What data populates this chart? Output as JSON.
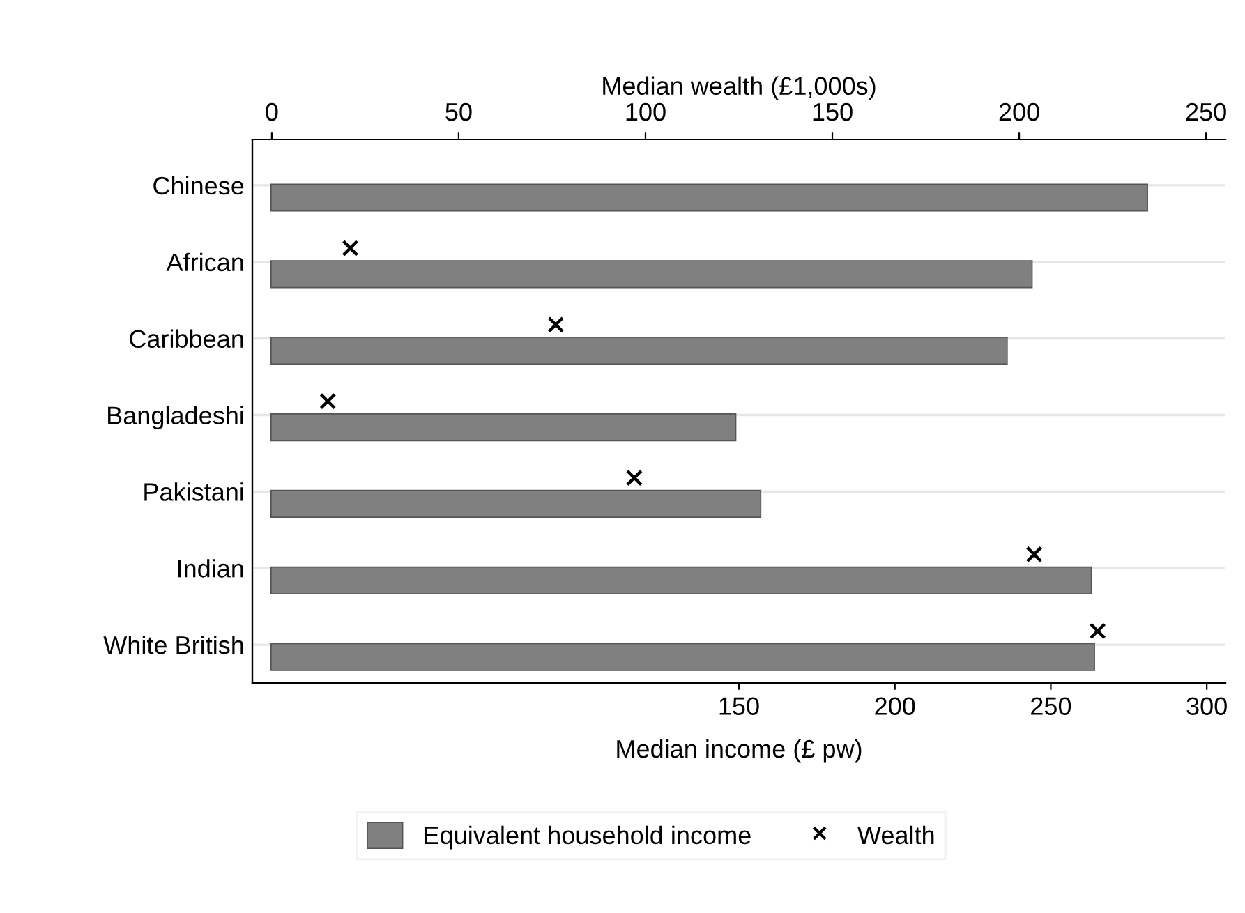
{
  "chart_data": {
    "type": "bar",
    "orientation": "horizontal",
    "categories": [
      "Chinese",
      "African",
      "Caribbean",
      "Bangladeshi",
      "Pakistani",
      "Indian",
      "White British"
    ],
    "series": [
      {
        "name": "Equivalent household income",
        "color": "#808080",
        "values": [
          281,
          244,
          236,
          149,
          157,
          263,
          264
        ]
      },
      {
        "name": "Wealth",
        "type": "scatter",
        "axis": "x2",
        "marker": "cross",
        "color": "#000000",
        "values": [
          null,
          21,
          76,
          15,
          97,
          204,
          221
        ]
      }
    ],
    "xlabel": "Median income (£ pw)",
    "x2label": "Median wealth (£1,000s)",
    "xlim": [
      -6,
      306
    ],
    "xticks": [
      150,
      200,
      250,
      300
    ],
    "x2lim": [
      -5.2,
      255.2
    ],
    "x2ticks": [
      0,
      50,
      100,
      150,
      200,
      250
    ],
    "grid": "y",
    "legend": "bottom"
  }
}
